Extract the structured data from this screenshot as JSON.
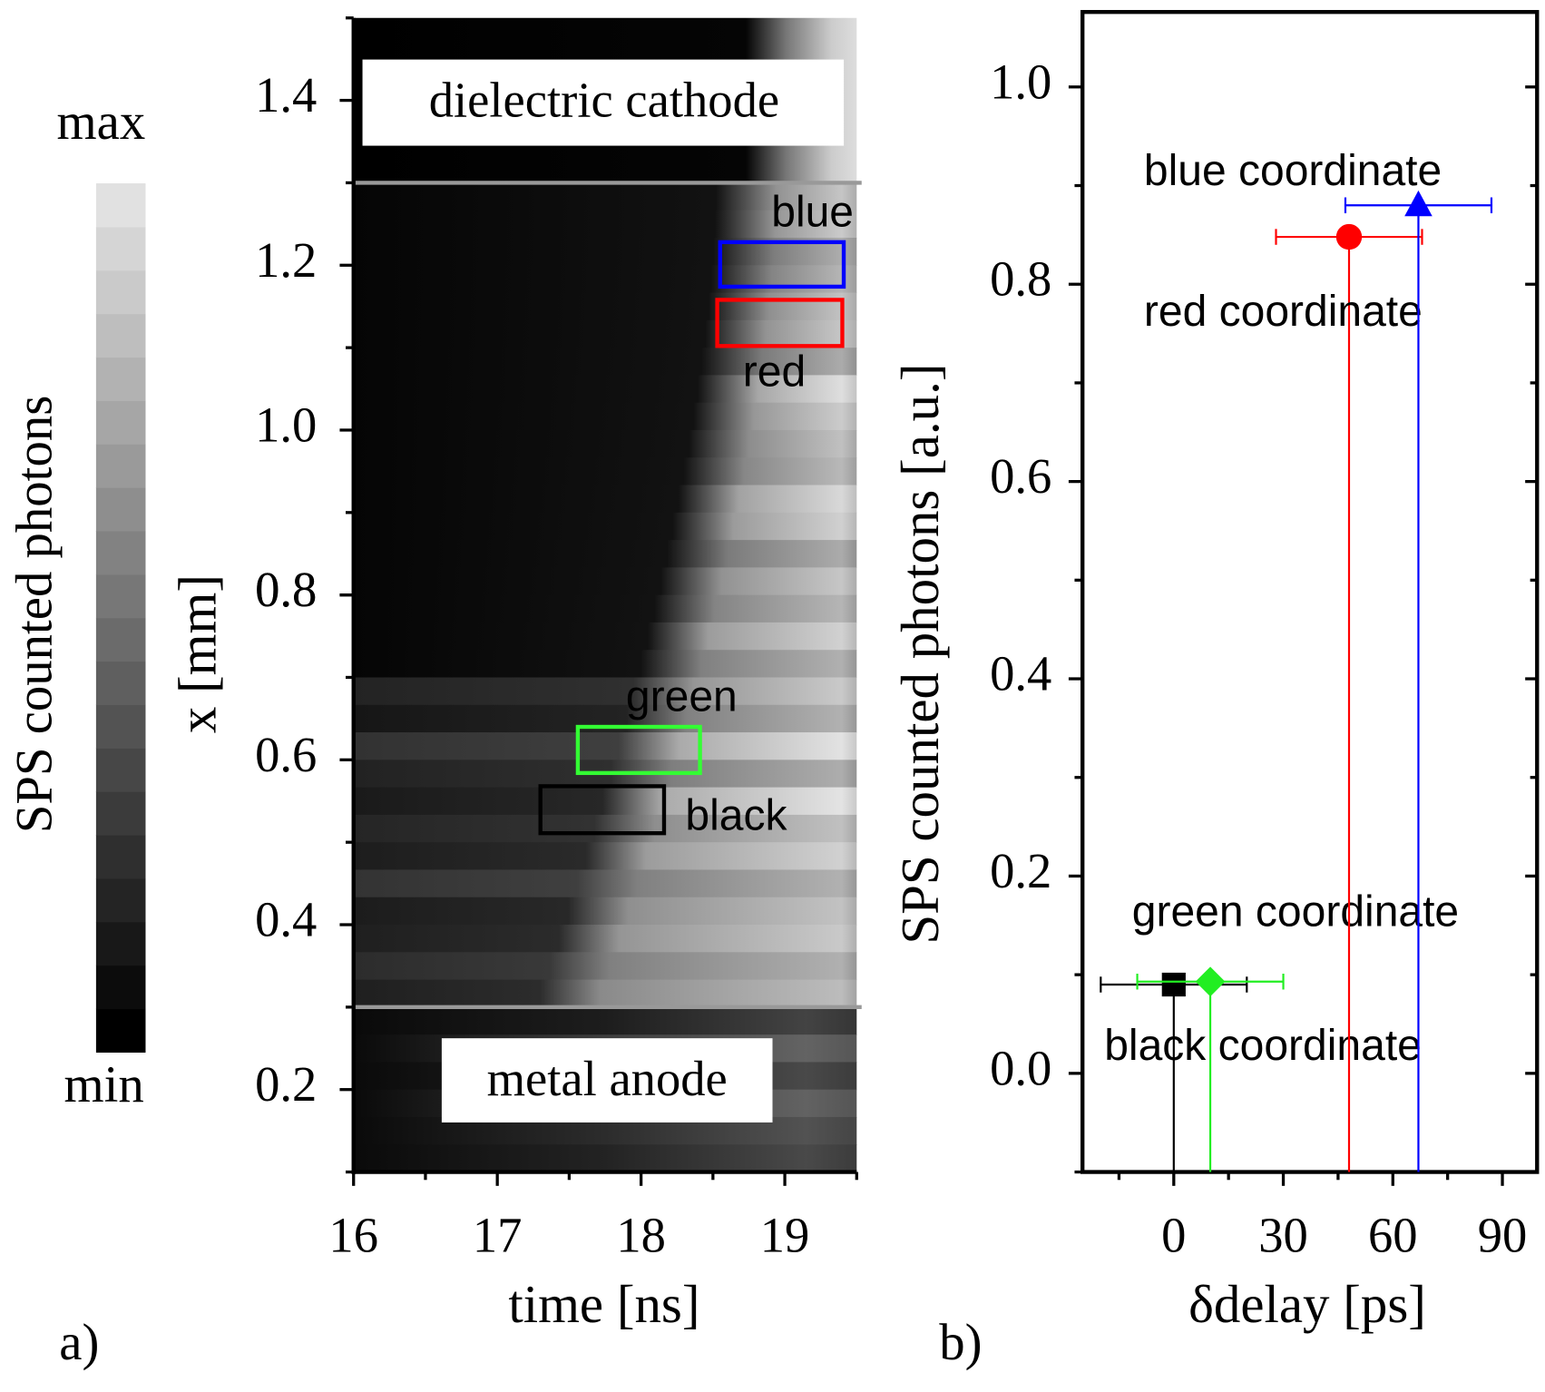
{
  "chart_data": [
    {
      "type": "heatmap",
      "xlabel": "time [ns]",
      "ylabel": "x [mm]",
      "xlim": [
        16,
        19.5
      ],
      "ylim": [
        0.1,
        1.5
      ],
      "xticks": [
        16,
        17,
        18,
        19
      ],
      "xminorticks": [
        16.5,
        17.5,
        18.5,
        19.5
      ],
      "yticks": [
        0.2,
        0.4,
        0.6,
        0.8,
        {
          "value": 1,
          "label": "1.0"
        },
        0.8,
        1.2,
        1.4
      ],
      "yminorticks": [
        0.1,
        0.3,
        0.5,
        0.7,
        0.9,
        1.1,
        1.3,
        1.5
      ],
      "boundaries": [
        1.3,
        0.3
      ],
      "annotations": [
        "dielectric cathode",
        "metal anode"
      ],
      "regions": [
        {
          "name": "blue",
          "color": "#0000ff",
          "x": [
            18.55,
            19.41
          ],
          "y": [
            1.174,
            1.228
          ]
        },
        {
          "name": "red",
          "color": "#ff0000",
          "x": [
            18.53,
            19.4
          ],
          "y": [
            1.102,
            1.158
          ]
        },
        {
          "name": "green",
          "color": "#33ff33",
          "x": [
            17.56,
            18.41
          ],
          "y": [
            0.584,
            0.64
          ]
        },
        {
          "name": "black",
          "color": "#000000",
          "x": [
            17.3,
            18.16
          ],
          "y": [
            0.511,
            0.568
          ]
        }
      ]
    },
    {
      "type": "scatter",
      "xlabel": "δdelay [ps]",
      "ylabel": "SPS counted photons [a.u.]",
      "xlim": [
        -25,
        99.5
      ],
      "ylim": [
        -0.1,
        1.076
      ],
      "xticks": [
        0,
        30,
        60,
        90
      ],
      "xminorticks": [
        -15,
        15,
        45,
        75
      ],
      "yticks": [
        {
          "value": 0,
          "label": "0.0"
        },
        0.2,
        0.4,
        0.6,
        0.8,
        {
          "value": 1,
          "label": "1.0"
        }
      ],
      "yminorticks": [
        -0.1,
        0.1,
        0.3,
        0.5,
        0.7,
        0.9
      ],
      "series": [
        {
          "name": "black coordinate",
          "color": "#000000",
          "marker": "square",
          "x": [
            0
          ],
          "values": [
            0.09
          ],
          "xerr": [
            20
          ]
        },
        {
          "name": "green coordinate",
          "color": "#22ee22",
          "marker": "diamond",
          "x": [
            10
          ],
          "values": [
            0.093
          ],
          "xerr": [
            20
          ]
        },
        {
          "name": "red coordinate",
          "color": "#ff0000",
          "marker": "circle",
          "x": [
            48
          ],
          "values": [
            0.848
          ],
          "xerr": [
            20
          ]
        },
        {
          "name": "blue coordinate",
          "color": "#0000ff",
          "marker": "triangle",
          "x": [
            67
          ],
          "values": [
            0.88
          ],
          "xerr": [
            20
          ]
        }
      ]
    }
  ],
  "colorbar": {
    "label": "SPS counted photons",
    "max": "max",
    "min": "min"
  },
  "panel_labels": [
    "a)",
    "b)"
  ]
}
